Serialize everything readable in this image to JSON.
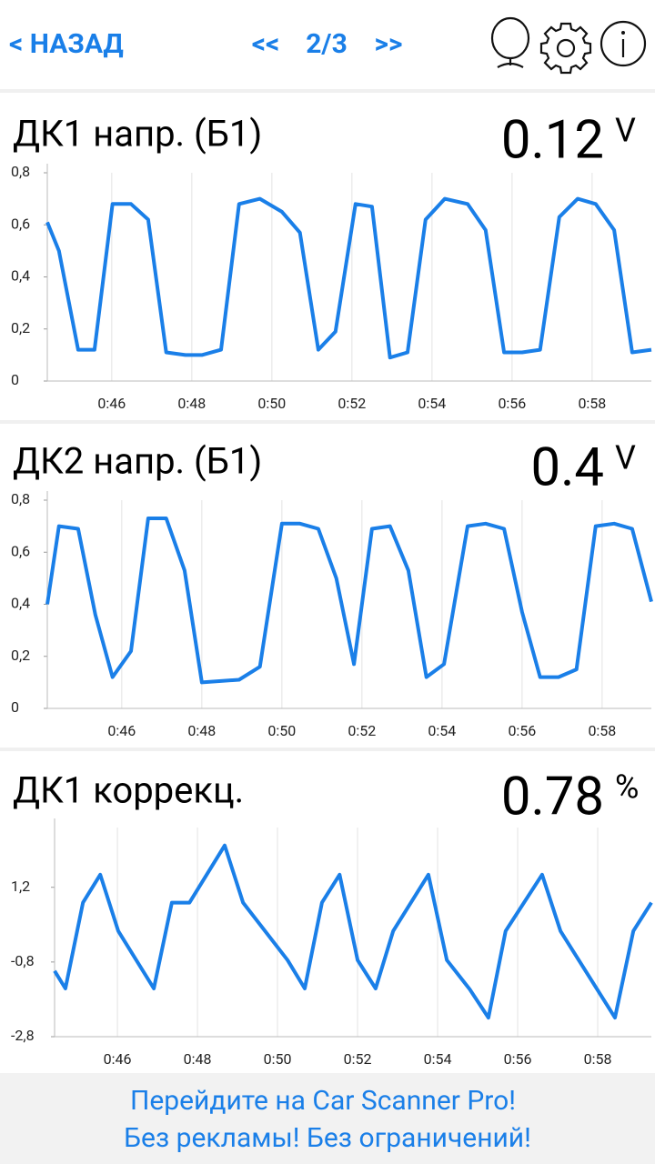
{
  "header": {
    "back": "< НАЗАД",
    "prev": "<<",
    "page": "2/3",
    "next": ">>"
  },
  "chart_data": [
    {
      "type": "line",
      "title": "ДК1 напр. (Б1)",
      "value": 0.12,
      "unit": "V",
      "xlim": [
        44.39,
        59.48
      ],
      "xticks": [
        {
          "value": 46,
          "label": "0:46"
        },
        {
          "value": 48,
          "label": "0:48"
        },
        {
          "value": 50,
          "label": "0:50"
        },
        {
          "value": 52,
          "label": "0:52"
        },
        {
          "value": 54,
          "label": "0:54"
        },
        {
          "value": 56,
          "label": "0:56"
        },
        {
          "value": 58,
          "label": "0:58"
        }
      ],
      "ylim": [
        0,
        0.8
      ],
      "yticks": [
        0,
        {
          "value": 0.2,
          "label": "0,2"
        },
        {
          "value": 0.4,
          "label": "0,4"
        },
        {
          "value": 0.6,
          "label": "0,6"
        },
        {
          "value": 0.8,
          "label": "0,8"
        }
      ],
      "grid": true,
      "series": [
        {
          "color": "#1a7fe8",
          "x": [
            44.39,
            44.68,
            45.16,
            45.57,
            46.02,
            46.48,
            46.91,
            47.36,
            47.84,
            48.25,
            48.73,
            49.18,
            49.7,
            50.25,
            50.7,
            51.16,
            51.59,
            52.09,
            52.5,
            52.95,
            53.39,
            53.84,
            54.32,
            54.89,
            55.34,
            55.8,
            56.25,
            56.7,
            57.18,
            57.64,
            58.09,
            58.55,
            59.0,
            59.48
          ],
          "values": [
            0.61,
            0.5,
            0.12,
            0.12,
            0.68,
            0.68,
            0.62,
            0.11,
            0.1,
            0.1,
            0.12,
            0.68,
            0.7,
            0.65,
            0.57,
            0.12,
            0.19,
            0.68,
            0.67,
            0.09,
            0.11,
            0.62,
            0.7,
            0.68,
            0.58,
            0.11,
            0.11,
            0.12,
            0.63,
            0.7,
            0.68,
            0.58,
            0.11,
            0.12
          ]
        }
      ]
    },
    {
      "type": "line",
      "title": "ДК2 напр. (Б1)",
      "value": 0.4,
      "unit": "V",
      "xlim": [
        44.14,
        59.23
      ],
      "xticks": [
        {
          "value": 46,
          "label": "0:46"
        },
        {
          "value": 48,
          "label": "0:48"
        },
        {
          "value": 50,
          "label": "0:50"
        },
        {
          "value": 52,
          "label": "0:52"
        },
        {
          "value": 54,
          "label": "0:54"
        },
        {
          "value": 56,
          "label": "0:56"
        },
        {
          "value": 58,
          "label": "0:58"
        }
      ],
      "ylim": [
        0,
        0.8
      ],
      "yticks": [
        0,
        {
          "value": 0.2,
          "label": "0,2"
        },
        {
          "value": 0.4,
          "label": "0,4"
        },
        {
          "value": 0.6,
          "label": "0,6"
        },
        {
          "value": 0.8,
          "label": "0,8"
        }
      ],
      "grid": true,
      "series": [
        {
          "color": "#1a7fe8",
          "x": [
            44.14,
            44.43,
            44.91,
            45.34,
            45.77,
            46.23,
            46.66,
            47.11,
            47.57,
            48.0,
            48.93,
            49.45,
            50.0,
            50.45,
            50.91,
            51.36,
            51.8,
            52.25,
            52.7,
            53.16,
            53.61,
            54.05,
            54.64,
            55.09,
            55.55,
            56.0,
            56.45,
            56.91,
            57.36,
            57.84,
            58.3,
            58.75,
            59.23
          ],
          "values": [
            0.4,
            0.7,
            0.69,
            0.36,
            0.12,
            0.22,
            0.73,
            0.73,
            0.53,
            0.1,
            0.11,
            0.16,
            0.71,
            0.71,
            0.69,
            0.5,
            0.17,
            0.69,
            0.7,
            0.53,
            0.12,
            0.17,
            0.7,
            0.71,
            0.69,
            0.37,
            0.12,
            0.12,
            0.15,
            0.7,
            0.71,
            0.69,
            0.41
          ]
        }
      ]
    },
    {
      "type": "line",
      "title": "ДК1 коррекц.",
      "value": 0.78,
      "unit": "%",
      "xlim": [
        44.43,
        59.34
      ],
      "xticks": [
        {
          "value": 46,
          "label": "0:46"
        },
        {
          "value": 48,
          "label": "0:48"
        },
        {
          "value": 50,
          "label": "0:50"
        },
        {
          "value": 52,
          "label": "0:52"
        },
        {
          "value": 54,
          "label": "0:54"
        },
        {
          "value": 56,
          "label": "0:56"
        },
        {
          "value": 58,
          "label": "0:58"
        }
      ],
      "ylim": [
        -2.8,
        2.8
      ],
      "yticks": [
        {
          "value": -2.8,
          "label": "-2,8"
        },
        {
          "value": -0.8,
          "label": "-0,8"
        },
        {
          "value": 1.2,
          "label": "1,2"
        }
      ],
      "grid": true,
      "series": [
        {
          "color": "#1a7fe8",
          "x": [
            44.43,
            44.7,
            45.14,
            45.57,
            46.02,
            46.91,
            47.36,
            47.8,
            48.68,
            49.14,
            50.25,
            50.68,
            51.11,
            51.55,
            52.0,
            52.45,
            52.89,
            53.77,
            54.23,
            54.8,
            55.27,
            55.7,
            56.61,
            57.07,
            58.43,
            58.89,
            59.34
          ],
          "values": [
            -1.04,
            -1.51,
            0.79,
            1.54,
            0.03,
            -1.51,
            0.79,
            0.79,
            2.32,
            0.79,
            -0.75,
            -1.51,
            0.79,
            1.54,
            -0.75,
            -1.51,
            0.03,
            1.54,
            -0.75,
            -1.53,
            -2.29,
            0.03,
            1.54,
            0.03,
            -2.29,
            0.03,
            0.79
          ]
        }
      ]
    }
  ],
  "footer": {
    "line1": "Перейдите на Car Scanner Pro!",
    "line2": "Без рекламы! Без ограничений!"
  }
}
